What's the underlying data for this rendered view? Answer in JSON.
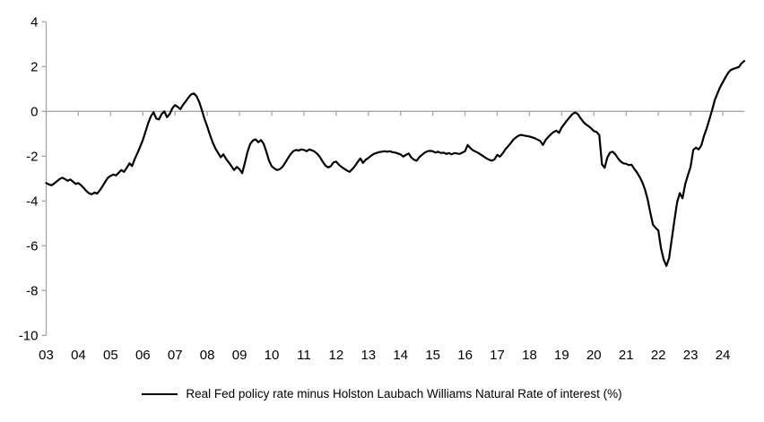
{
  "legend": {
    "label": "Real Fed policy rate minus Holston Laubach Williams Natural Rate of interest (%)"
  },
  "colors": {
    "line": "#000000",
    "axis": "#a6a6a6",
    "text": "#000000",
    "background": "#ffffff"
  },
  "chart_data": {
    "type": "line",
    "title": "",
    "xlabel": "",
    "ylabel": "",
    "grid": "zero-line-only",
    "legend_position": "bottom-center",
    "xlim": [
      2003,
      2024.6667
    ],
    "ylim": [
      -10,
      4
    ],
    "y_ticks": [
      4,
      2,
      0,
      -2,
      -4,
      -6,
      -8,
      -10
    ],
    "y_tick_labels": [
      "4",
      "2",
      "0",
      "-2",
      "-4",
      "-6",
      "-8",
      "-10"
    ],
    "x_ticks": [
      2003,
      2004,
      2005,
      2006,
      2007,
      2008,
      2009,
      2010,
      2011,
      2012,
      2013,
      2014,
      2015,
      2016,
      2017,
      2018,
      2019,
      2020,
      2021,
      2022,
      2023,
      2024
    ],
    "x_tick_labels": [
      "03",
      "04",
      "05",
      "06",
      "07",
      "08",
      "09",
      "10",
      "11",
      "12",
      "13",
      "14",
      "15",
      "16",
      "17",
      "18",
      "19",
      "20",
      "21",
      "22",
      "23",
      "24"
    ],
    "x_start": 2003.0,
    "x_step": 0.0833333,
    "series": [
      {
        "name": "Real Fed policy rate minus Holston Laubach Williams Natural Rate of interest (%)",
        "values": [
          -3.2,
          -3.26,
          -3.3,
          -3.22,
          -3.12,
          -3.02,
          -2.96,
          -3.02,
          -3.1,
          -3.04,
          -3.14,
          -3.24,
          -3.2,
          -3.3,
          -3.42,
          -3.56,
          -3.66,
          -3.7,
          -3.62,
          -3.67,
          -3.52,
          -3.34,
          -3.14,
          -2.96,
          -2.88,
          -2.82,
          -2.86,
          -2.74,
          -2.62,
          -2.7,
          -2.52,
          -2.32,
          -2.44,
          -2.12,
          -1.86,
          -1.58,
          -1.28,
          -0.9,
          -0.52,
          -0.22,
          -0.04,
          -0.32,
          -0.36,
          -0.12,
          0.0,
          -0.26,
          -0.12,
          0.14,
          0.28,
          0.2,
          0.1,
          0.3,
          0.45,
          0.62,
          0.76,
          0.8,
          0.68,
          0.42,
          0.05,
          -0.35,
          -0.68,
          -1.05,
          -1.38,
          -1.65,
          -1.85,
          -2.05,
          -1.92,
          -2.12,
          -2.28,
          -2.45,
          -2.62,
          -2.48,
          -2.58,
          -2.76,
          -2.3,
          -1.8,
          -1.45,
          -1.3,
          -1.25,
          -1.38,
          -1.28,
          -1.45,
          -1.8,
          -2.2,
          -2.45,
          -2.55,
          -2.62,
          -2.58,
          -2.48,
          -2.3,
          -2.1,
          -1.92,
          -1.78,
          -1.72,
          -1.75,
          -1.7,
          -1.72,
          -1.78,
          -1.7,
          -1.74,
          -1.8,
          -1.9,
          -2.05,
          -2.25,
          -2.42,
          -2.5,
          -2.45,
          -2.28,
          -2.24,
          -2.38,
          -2.48,
          -2.56,
          -2.64,
          -2.7,
          -2.58,
          -2.44,
          -2.26,
          -2.1,
          -2.3,
          -2.16,
          -2.08,
          -1.98,
          -1.9,
          -1.86,
          -1.82,
          -1.8,
          -1.78,
          -1.8,
          -1.78,
          -1.82,
          -1.84,
          -1.88,
          -1.92,
          -2.02,
          -1.94,
          -1.88,
          -2.06,
          -2.16,
          -2.2,
          -2.04,
          -1.94,
          -1.84,
          -1.78,
          -1.76,
          -1.78,
          -1.84,
          -1.8,
          -1.86,
          -1.84,
          -1.9,
          -1.86,
          -1.92,
          -1.86,
          -1.88,
          -1.9,
          -1.84,
          -1.78,
          -1.5,
          -1.64,
          -1.74,
          -1.8,
          -1.86,
          -1.94,
          -2.02,
          -2.1,
          -2.16,
          -2.2,
          -2.14,
          -1.94,
          -2.02,
          -1.88,
          -1.7,
          -1.56,
          -1.42,
          -1.26,
          -1.16,
          -1.08,
          -1.05,
          -1.08,
          -1.1,
          -1.12,
          -1.16,
          -1.2,
          -1.26,
          -1.32,
          -1.5,
          -1.28,
          -1.14,
          -1.02,
          -0.92,
          -0.86,
          -0.96,
          -0.72,
          -0.56,
          -0.4,
          -0.26,
          -0.12,
          -0.05,
          -0.12,
          -0.3,
          -0.46,
          -0.58,
          -0.66,
          -0.76,
          -0.88,
          -0.92,
          -1.06,
          -2.36,
          -2.52,
          -2.06,
          -1.84,
          -1.8,
          -1.92,
          -2.1,
          -2.24,
          -2.32,
          -2.34,
          -2.4,
          -2.38,
          -2.56,
          -2.72,
          -2.92,
          -3.16,
          -3.48,
          -3.92,
          -4.52,
          -5.06,
          -5.2,
          -5.32,
          -6.12,
          -6.62,
          -6.9,
          -6.55,
          -5.7,
          -4.85,
          -4.05,
          -3.65,
          -3.88,
          -3.25,
          -2.85,
          -2.48,
          -1.72,
          -1.62,
          -1.7,
          -1.52,
          -1.1,
          -0.76,
          -0.36,
          0.05,
          0.5,
          0.8,
          1.08,
          1.3,
          1.52,
          1.72,
          1.85,
          1.9,
          1.94,
          1.98,
          2.15,
          2.25
        ]
      }
    ]
  }
}
